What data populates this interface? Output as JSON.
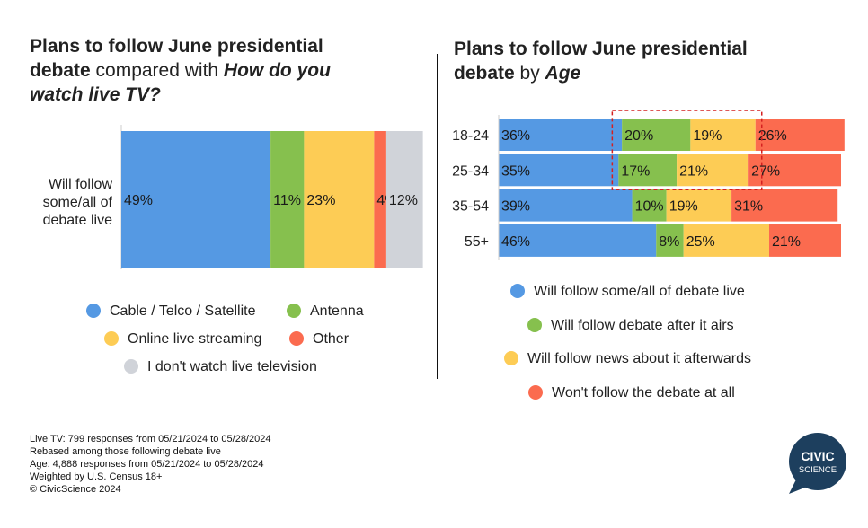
{
  "left_title": {
    "bold1": "Plans to follow June presidential",
    "bold2": "debate",
    "normal": " compared with ",
    "italic": "How do you watch live TV?"
  },
  "right_title": {
    "bold1": "Plans to follow June presidential",
    "bold2": "debate",
    "normal": " by ",
    "italic": "Age"
  },
  "colors": {
    "blue": "#5599e3",
    "green": "#86c04e",
    "yellow": "#fdcc55",
    "red": "#fb6b4f",
    "gray": "#d0d3d9",
    "highlight": "#d42020"
  },
  "chart_data": [
    {
      "type": "bar",
      "orientation": "horizontal",
      "stacked": true,
      "categories": [
        "Will follow some/all of debate live"
      ],
      "category_lines": [
        "Will follow",
        "some/all of",
        "debate live"
      ],
      "series": [
        {
          "name": "Cable / Telco / Satellite",
          "color": "#5599e3",
          "values": [
            49
          ]
        },
        {
          "name": "Antenna",
          "color": "#86c04e",
          "values": [
            11
          ]
        },
        {
          "name": "Online live streaming",
          "color": "#fdcc55",
          "values": [
            23
          ]
        },
        {
          "name": "Other",
          "color": "#fb6b4f",
          "values": [
            4
          ]
        },
        {
          "name": "I don't watch live television",
          "color": "#d0d3d9",
          "values": [
            12
          ]
        }
      ],
      "value_suffix": "%"
    },
    {
      "type": "bar",
      "orientation": "horizontal",
      "stacked": true,
      "categories": [
        "18-24",
        "25-34",
        "35-54",
        "55+"
      ],
      "series": [
        {
          "name": "Will follow some/all of debate live",
          "color": "#5599e3",
          "values": [
            36,
            35,
            39,
            46
          ]
        },
        {
          "name": "Will follow debate after it airs",
          "color": "#86c04e",
          "values": [
            20,
            17,
            10,
            8
          ]
        },
        {
          "name": "Will follow news about it afterwards",
          "color": "#fdcc55",
          "values": [
            19,
            21,
            19,
            25
          ]
        },
        {
          "name": "Won't follow the debate at all",
          "color": "#fb6b4f",
          "values": [
            26,
            27,
            31,
            21
          ]
        }
      ],
      "value_suffix": "%",
      "highlight_box": {
        "categories": [
          "18-24",
          "25-34"
        ],
        "series": [
          "Will follow debate after it airs",
          "Will follow news about it afterwards"
        ],
        "style": "dashed"
      }
    }
  ],
  "footnote": [
    "Live TV: 799 responses from 05/21/2024 to 05/28/2024",
    "Rebased among those following debate live",
    "Age: 4,888 responses from 05/21/2024 to 05/28/2024",
    "Weighted by U.S. Census 18+",
    "© CivicScience 2024"
  ],
  "logo": {
    "line1": "CIVIC",
    "line2": "SCIENCE",
    "color": "#1d3f5e"
  }
}
